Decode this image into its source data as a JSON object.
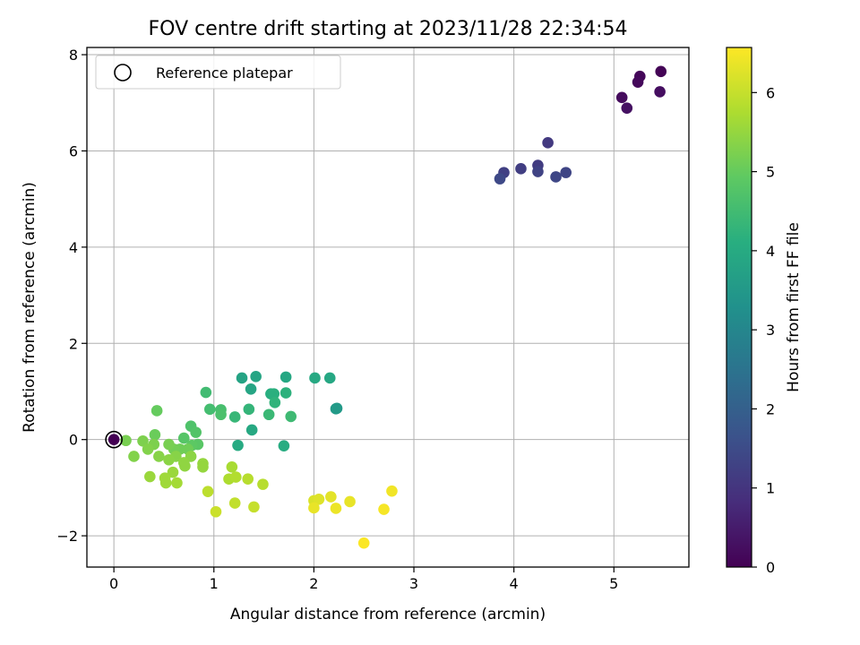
{
  "chart_data": {
    "type": "scatter",
    "title": "FOV centre drift starting at 2023/11/28 22:34:54",
    "xlabel": "Angular distance from reference (arcmin)",
    "ylabel": "Rotation from reference (arcmin)",
    "xlim": [
      -0.27,
      5.75
    ],
    "ylim": [
      -2.65,
      8.15
    ],
    "xticks": [
      0,
      1,
      2,
      3,
      4,
      5
    ],
    "yticks": [
      -2,
      0,
      2,
      4,
      6,
      8
    ],
    "xtick_labels": [
      "0",
      "1",
      "2",
      "3",
      "4",
      "5"
    ],
    "ytick_labels": [
      "−2",
      "0",
      "2",
      "4",
      "6",
      "8"
    ],
    "grid": true,
    "colormap": "viridis",
    "legend": {
      "placement": "upper-left",
      "entries": [
        "Reference platepar"
      ]
    },
    "colorbar": {
      "label": "Hours from first FF file",
      "range": [
        0,
        6.57
      ],
      "ticks": [
        0,
        1,
        2,
        3,
        4,
        5,
        6
      ],
      "tick_labels": [
        "0",
        "1",
        "2",
        "3",
        "4",
        "5",
        "6"
      ]
    },
    "reference_point": {
      "x": 0,
      "y": 0
    },
    "points": [
      {
        "x": 0.0,
        "y": 0.0,
        "c": 0.0
      },
      {
        "x": 5.47,
        "y": 7.65,
        "c": 0.05
      },
      {
        "x": 5.26,
        "y": 7.55,
        "c": 0.1
      },
      {
        "x": 5.24,
        "y": 7.43,
        "c": 0.15
      },
      {
        "x": 5.08,
        "y": 7.11,
        "c": 0.2
      },
      {
        "x": 5.46,
        "y": 7.23,
        "c": 0.25
      },
      {
        "x": 5.13,
        "y": 6.89,
        "c": 0.3
      },
      {
        "x": 4.34,
        "y": 6.17,
        "c": 1.1
      },
      {
        "x": 4.24,
        "y": 5.7,
        "c": 1.15
      },
      {
        "x": 4.07,
        "y": 5.63,
        "c": 1.2
      },
      {
        "x": 3.9,
        "y": 5.55,
        "c": 1.25
      },
      {
        "x": 4.24,
        "y": 5.57,
        "c": 1.3
      },
      {
        "x": 4.52,
        "y": 5.55,
        "c": 1.35
      },
      {
        "x": 4.42,
        "y": 5.46,
        "c": 1.4
      },
      {
        "x": 3.86,
        "y": 5.42,
        "c": 1.45
      },
      {
        "x": 2.23,
        "y": 0.65,
        "c": 3.5
      },
      {
        "x": 2.22,
        "y": 0.64,
        "c": 3.55
      },
      {
        "x": 1.28,
        "y": 1.28,
        "c": 3.8
      },
      {
        "x": 1.42,
        "y": 1.31,
        "c": 3.85
      },
      {
        "x": 1.72,
        "y": 1.3,
        "c": 3.9
      },
      {
        "x": 2.01,
        "y": 1.28,
        "c": 3.95
      },
      {
        "x": 2.16,
        "y": 1.28,
        "c": 3.9
      },
      {
        "x": 1.37,
        "y": 1.05,
        "c": 3.85
      },
      {
        "x": 1.38,
        "y": 0.2,
        "c": 3.95
      },
      {
        "x": 1.24,
        "y": -0.12,
        "c": 4.0
      },
      {
        "x": 1.7,
        "y": -0.13,
        "c": 4.05
      },
      {
        "x": 1.57,
        "y": 0.95,
        "c": 4.1
      },
      {
        "x": 1.6,
        "y": 0.95,
        "c": 4.15
      },
      {
        "x": 1.72,
        "y": 0.97,
        "c": 4.2
      },
      {
        "x": 1.61,
        "y": 0.77,
        "c": 4.25
      },
      {
        "x": 1.35,
        "y": 0.63,
        "c": 4.3
      },
      {
        "x": 1.21,
        "y": 0.47,
        "c": 4.35
      },
      {
        "x": 1.55,
        "y": 0.52,
        "c": 4.4
      },
      {
        "x": 1.77,
        "y": 0.48,
        "c": 4.45
      },
      {
        "x": 0.92,
        "y": 0.98,
        "c": 4.5
      },
      {
        "x": 0.96,
        "y": 0.63,
        "c": 4.55
      },
      {
        "x": 1.07,
        "y": 0.62,
        "c": 4.6
      },
      {
        "x": 1.07,
        "y": 0.52,
        "c": 4.65
      },
      {
        "x": 0.77,
        "y": 0.28,
        "c": 4.7
      },
      {
        "x": 0.82,
        "y": 0.15,
        "c": 4.75
      },
      {
        "x": 0.7,
        "y": 0.03,
        "c": 4.8
      },
      {
        "x": 0.84,
        "y": -0.1,
        "c": 4.85
      },
      {
        "x": 0.78,
        "y": -0.12,
        "c": 4.9
      },
      {
        "x": 0.43,
        "y": 0.6,
        "c": 5.0
      },
      {
        "x": 0.41,
        "y": 0.1,
        "c": 5.05
      },
      {
        "x": 0.66,
        "y": -0.2,
        "c": 5.1
      },
      {
        "x": 0.74,
        "y": -0.2,
        "c": 5.1
      },
      {
        "x": 0.6,
        "y": -0.2,
        "c": 5.15
      },
      {
        "x": 0.55,
        "y": -0.1,
        "c": 5.2
      },
      {
        "x": 0.12,
        "y": -0.02,
        "c": 5.2
      },
      {
        "x": 0.29,
        "y": -0.03,
        "c": 5.25
      },
      {
        "x": 0.4,
        "y": -0.1,
        "c": 5.25
      },
      {
        "x": 0.34,
        "y": -0.2,
        "c": 5.3
      },
      {
        "x": 0.2,
        "y": -0.35,
        "c": 5.3
      },
      {
        "x": 0.45,
        "y": -0.35,
        "c": 5.35
      },
      {
        "x": 0.62,
        "y": -0.35,
        "c": 5.35
      },
      {
        "x": 0.55,
        "y": -0.42,
        "c": 5.4
      },
      {
        "x": 0.77,
        "y": -0.35,
        "c": 5.4
      },
      {
        "x": 0.7,
        "y": -0.48,
        "c": 5.45
      },
      {
        "x": 0.71,
        "y": -0.55,
        "c": 5.45
      },
      {
        "x": 0.89,
        "y": -0.5,
        "c": 5.5
      },
      {
        "x": 0.89,
        "y": -0.57,
        "c": 5.5
      },
      {
        "x": 0.59,
        "y": -0.68,
        "c": 5.55
      },
      {
        "x": 0.36,
        "y": -0.77,
        "c": 5.55
      },
      {
        "x": 0.51,
        "y": -0.8,
        "c": 5.6
      },
      {
        "x": 0.52,
        "y": -0.9,
        "c": 5.6
      },
      {
        "x": 0.63,
        "y": -0.9,
        "c": 5.65
      },
      {
        "x": 1.18,
        "y": -0.57,
        "c": 5.7
      },
      {
        "x": 1.15,
        "y": -0.82,
        "c": 5.75
      },
      {
        "x": 1.22,
        "y": -0.78,
        "c": 5.8
      },
      {
        "x": 1.34,
        "y": -0.82,
        "c": 5.85
      },
      {
        "x": 1.49,
        "y": -0.93,
        "c": 5.85
      },
      {
        "x": 0.94,
        "y": -1.08,
        "c": 5.9
      },
      {
        "x": 1.21,
        "y": -1.32,
        "c": 5.95
      },
      {
        "x": 1.4,
        "y": -1.4,
        "c": 6.0
      },
      {
        "x": 1.02,
        "y": -1.5,
        "c": 6.05
      },
      {
        "x": 2.0,
        "y": -1.27,
        "c": 6.2
      },
      {
        "x": 2.05,
        "y": -1.24,
        "c": 6.25
      },
      {
        "x": 2.17,
        "y": -1.19,
        "c": 6.3
      },
      {
        "x": 2.36,
        "y": -1.29,
        "c": 6.35
      },
      {
        "x": 2.0,
        "y": -1.42,
        "c": 6.35
      },
      {
        "x": 2.22,
        "y": -1.43,
        "c": 6.4
      },
      {
        "x": 2.78,
        "y": -1.07,
        "c": 6.45
      },
      {
        "x": 2.7,
        "y": -1.45,
        "c": 6.5
      },
      {
        "x": 2.5,
        "y": -2.15,
        "c": 6.55
      }
    ]
  }
}
